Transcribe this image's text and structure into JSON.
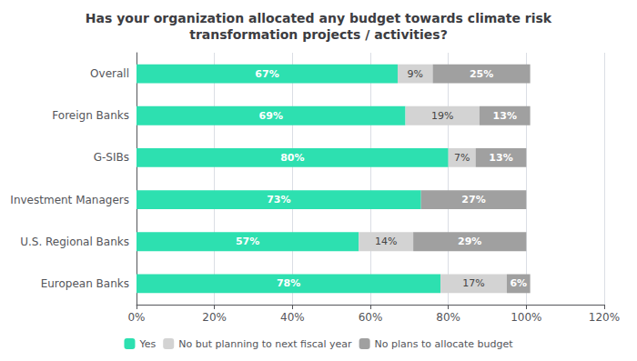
{
  "chart_data": {
    "type": "bar",
    "orientation": "horizontal",
    "stacked": true,
    "title": "Has your organization allocated any budget towards climate risk\ntransformation projects / activities?",
    "categories": [
      "European Banks",
      "U.S. Regional Banks",
      "Investment Managers",
      "G-SIBs",
      "Foreign Banks",
      "Overall"
    ],
    "series": [
      {
        "name": "Yes",
        "color": "#2de0b0",
        "values": [
          78,
          57,
          73,
          80,
          69,
          67
        ],
        "value_labels": [
          "78%",
          "57%",
          "73%",
          "80%",
          "69%",
          "67%"
        ]
      },
      {
        "name": "No but planning to next fiscal year",
        "color": "#d3d3d3",
        "values": [
          17,
          14,
          0,
          7,
          19,
          9
        ],
        "value_labels": [
          "17%",
          "14%",
          null,
          "7%",
          "19%",
          "9%"
        ]
      },
      {
        "name": "No plans to allocate budget",
        "color": "#a0a0a0",
        "values": [
          6,
          29,
          27,
          13,
          13,
          25
        ],
        "value_labels": [
          "6%",
          "29%",
          "27%",
          "13%",
          "13%",
          "25%"
        ]
      }
    ],
    "xlim": [
      0,
      120
    ],
    "xticks": [
      {
        "value": 0,
        "label": "0%"
      },
      {
        "value": 20,
        "label": "20%"
      },
      {
        "value": 40,
        "label": "40%"
      },
      {
        "value": 60,
        "label": "60%"
      },
      {
        "value": 80,
        "label": "80%"
      },
      {
        "value": 100,
        "label": "100%"
      },
      {
        "value": 120,
        "label": "120%"
      }
    ],
    "data_labels": true,
    "grid": true,
    "legend": "bottom"
  }
}
